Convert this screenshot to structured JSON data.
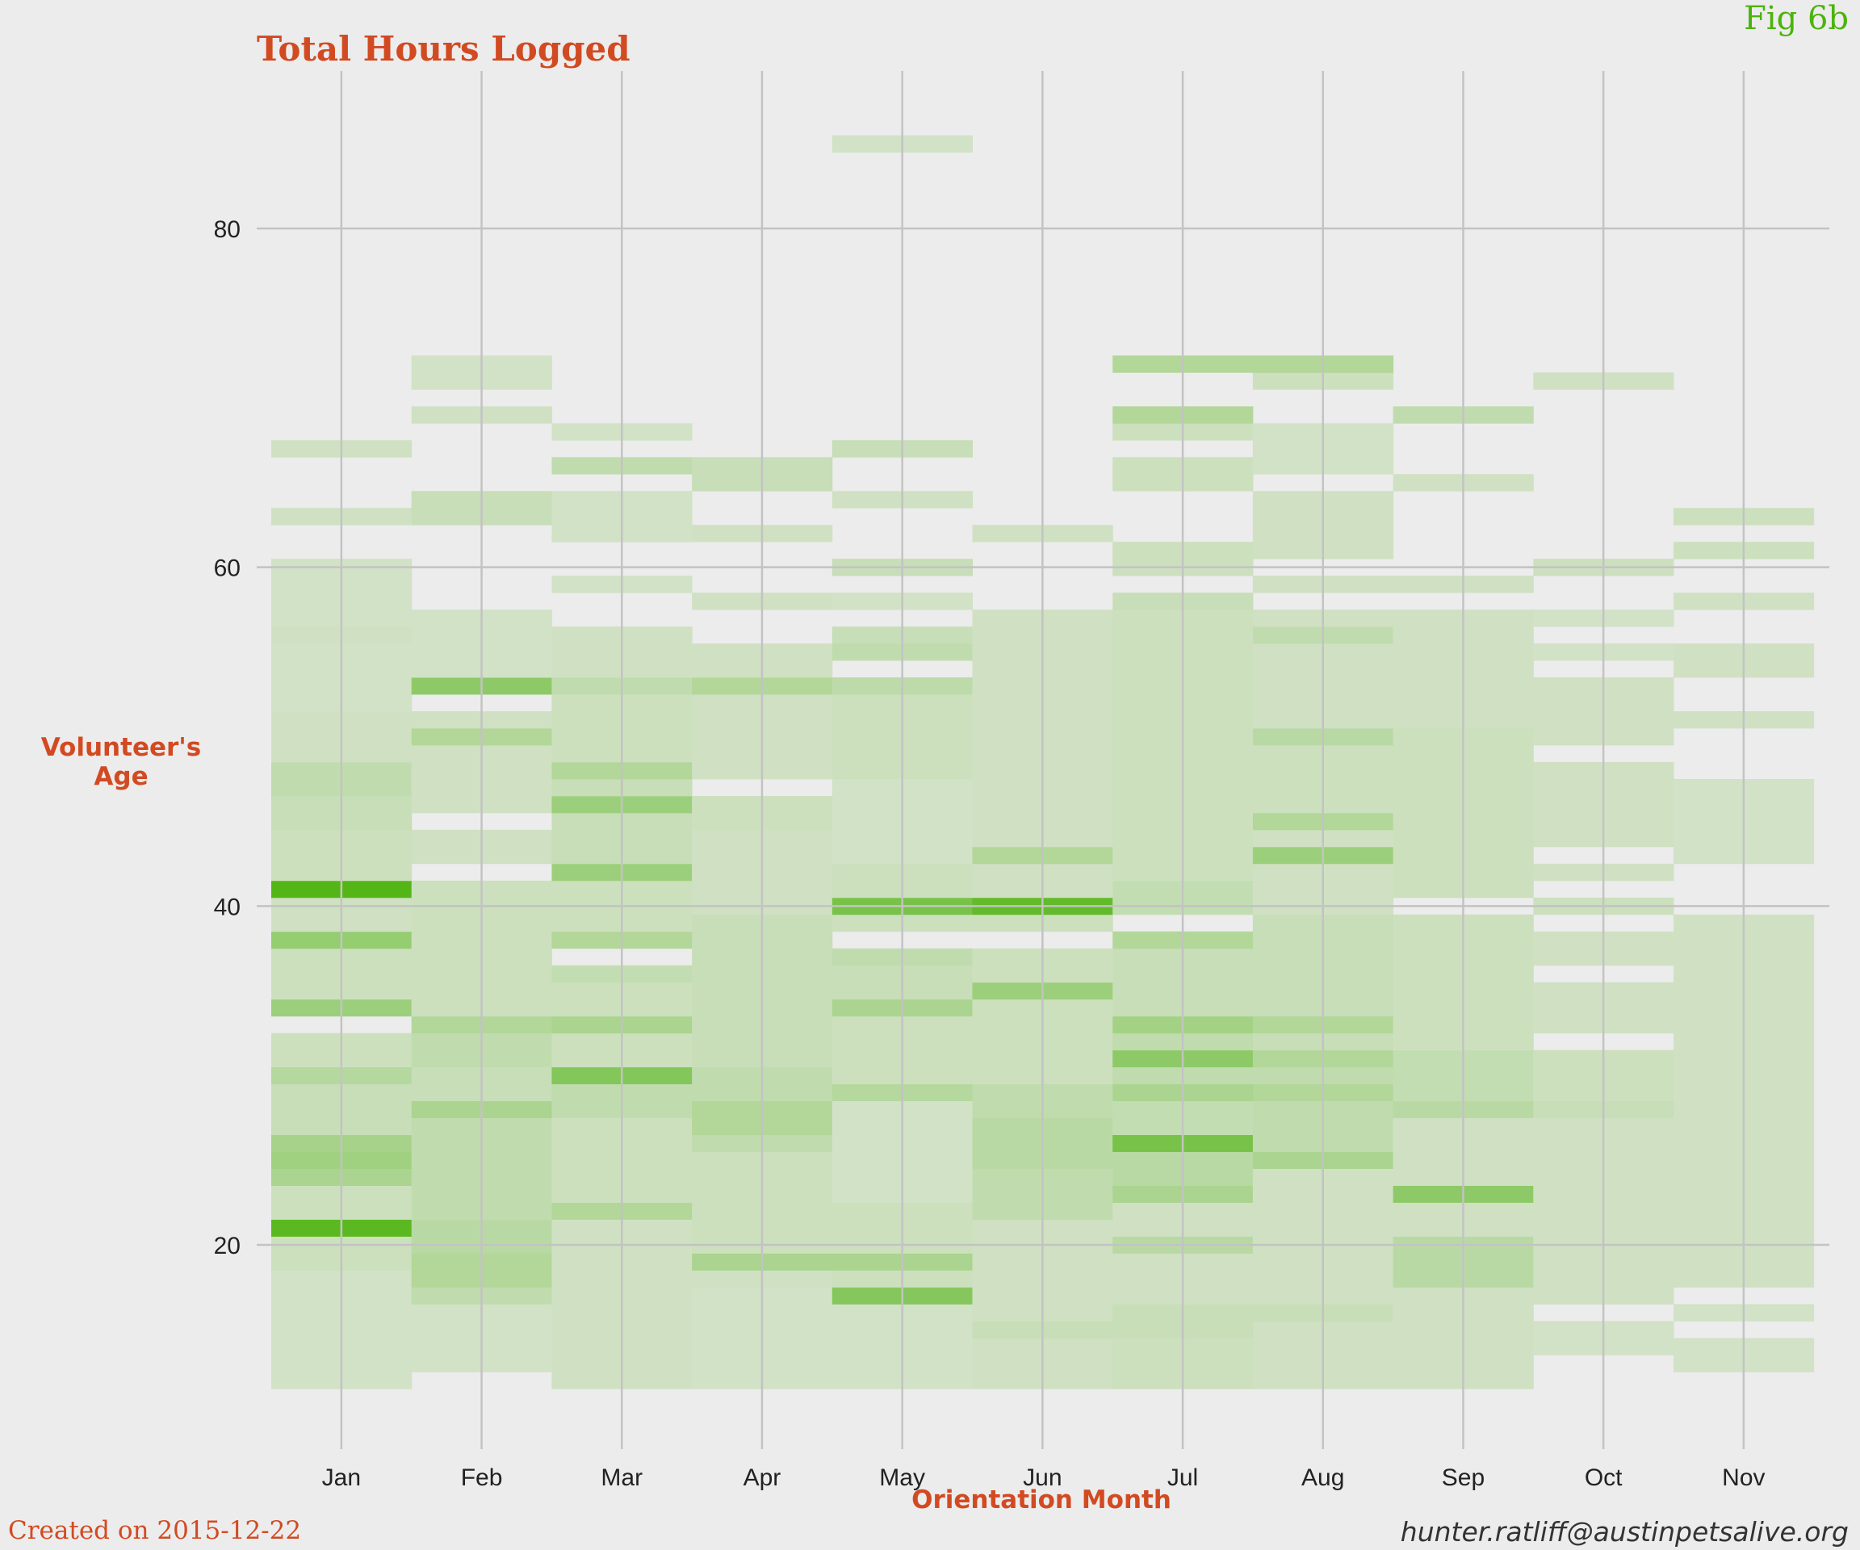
{
  "title": "Total Hours Logged",
  "figure_label": "Fig 6b",
  "footer": {
    "created": "Created on 2015-12-22",
    "credit": "hunter.ratliff@austinpetsalive.org"
  },
  "colors": {
    "background": "#ececec",
    "grid": "#c3c3c3",
    "title": "#d24a22",
    "figure_label": "#4cb30c",
    "fill_low": "#dde6d6",
    "fill_high": "#4cb30c"
  },
  "chart_data": {
    "type": "heatmap",
    "title": "Total Hours Logged",
    "xlabel": "Orientation Month",
    "ylabel": "Volunteer's Age",
    "categories": [
      "Jan",
      "Feb",
      "Mar",
      "Apr",
      "May",
      "Jun",
      "Jul",
      "Aug",
      "Sep",
      "Oct",
      "Nov"
    ],
    "yticks": [
      20,
      40,
      60,
      80
    ],
    "ylim": [
      7,
      89
    ],
    "grid": true,
    "legend": "none",
    "intensity_scale": "0-1 relative",
    "columns": [
      {
        "month": "Jan",
        "cells": [
          [
            12,
            18,
            0.08
          ],
          [
            19,
            20,
            0.12
          ],
          [
            21,
            0.9
          ],
          [
            22,
            23,
            0.12
          ],
          [
            24,
            0.35
          ],
          [
            25,
            0.42
          ],
          [
            26,
            0.38
          ],
          [
            27,
            29,
            0.15
          ],
          [
            30,
            0.28
          ],
          [
            31,
            32,
            0.12
          ],
          [
            34,
            0.45
          ],
          [
            35,
            37,
            0.12
          ],
          [
            38,
            0.5
          ],
          [
            39,
            40,
            0.1
          ],
          [
            41,
            0.95
          ],
          [
            42,
            44,
            0.12
          ],
          [
            45,
            46,
            0.15
          ],
          [
            47,
            48,
            0.2
          ],
          [
            49,
            51,
            0.1
          ],
          [
            52,
            55,
            0.08
          ],
          [
            56,
            0.1
          ],
          [
            57,
            60,
            0.08
          ],
          [
            63,
            0.1
          ],
          [
            67,
            0.1
          ]
        ]
      },
      {
        "month": "Feb",
        "cells": [
          [
            13,
            16,
            0.08
          ],
          [
            17,
            0.2
          ],
          [
            18,
            19,
            0.3
          ],
          [
            20,
            21,
            0.25
          ],
          [
            22,
            27,
            0.2
          ],
          [
            28,
            0.35
          ],
          [
            29,
            30,
            0.15
          ],
          [
            31,
            32,
            0.2
          ],
          [
            33,
            0.3
          ],
          [
            34,
            41,
            0.12
          ],
          [
            43,
            44,
            0.1
          ],
          [
            46,
            49,
            0.1
          ],
          [
            50,
            0.3
          ],
          [
            51,
            0.1
          ],
          [
            53,
            0.55
          ],
          [
            54,
            57,
            0.08
          ],
          [
            63,
            64,
            0.15
          ],
          [
            69,
            0.1
          ],
          [
            71,
            72,
            0.08
          ]
        ]
      },
      {
        "month": "Mar",
        "cells": [
          [
            12,
            21,
            0.1
          ],
          [
            22,
            0.3
          ],
          [
            23,
            27,
            0.12
          ],
          [
            28,
            29,
            0.2
          ],
          [
            30,
            0.62
          ],
          [
            31,
            32,
            0.12
          ],
          [
            33,
            0.35
          ],
          [
            34,
            35,
            0.12
          ],
          [
            36,
            0.18
          ],
          [
            38,
            0.3
          ],
          [
            39,
            41,
            0.12
          ],
          [
            42,
            0.45
          ],
          [
            43,
            45,
            0.15
          ],
          [
            46,
            0.45
          ],
          [
            47,
            0.15
          ],
          [
            48,
            0.3
          ],
          [
            49,
            52,
            0.12
          ],
          [
            53,
            0.2
          ],
          [
            54,
            56,
            0.1
          ],
          [
            59,
            0.08
          ],
          [
            62,
            64,
            0.08
          ],
          [
            66,
            0.2
          ],
          [
            68,
            0.08
          ]
        ]
      },
      {
        "month": "Apr",
        "cells": [
          [
            12,
            17,
            0.08
          ],
          [
            18,
            0.1
          ],
          [
            19,
            0.35
          ],
          [
            20,
            25,
            0.12
          ],
          [
            26,
            0.2
          ],
          [
            27,
            28,
            0.3
          ],
          [
            29,
            30,
            0.2
          ],
          [
            31,
            39,
            0.15
          ],
          [
            40,
            44,
            0.1
          ],
          [
            45,
            46,
            0.12
          ],
          [
            48,
            52,
            0.1
          ],
          [
            53,
            0.3
          ],
          [
            54,
            55,
            0.1
          ],
          [
            58,
            0.1
          ],
          [
            62,
            0.1
          ],
          [
            65,
            66,
            0.15
          ]
        ]
      },
      {
        "month": "May",
        "cells": [
          [
            12,
            16,
            0.08
          ],
          [
            17,
            0.6
          ],
          [
            18,
            0.12
          ],
          [
            19,
            0.35
          ],
          [
            20,
            22,
            0.12
          ],
          [
            23,
            28,
            0.08
          ],
          [
            29,
            0.28
          ],
          [
            30,
            33,
            0.12
          ],
          [
            34,
            0.35
          ],
          [
            35,
            36,
            0.15
          ],
          [
            37,
            0.2
          ],
          [
            39,
            0.12
          ],
          [
            40,
            0.7
          ],
          [
            41,
            42,
            0.12
          ],
          [
            43,
            47,
            0.08
          ],
          [
            48,
            52,
            0.12
          ],
          [
            53,
            0.22
          ],
          [
            55,
            0.2
          ],
          [
            56,
            0.15
          ],
          [
            58,
            0.08
          ],
          [
            60,
            0.15
          ],
          [
            64,
            0.1
          ],
          [
            67,
            0.15
          ],
          [
            85,
            0.08
          ]
        ]
      },
      {
        "month": "Jun",
        "cells": [
          [
            12,
            14,
            0.1
          ],
          [
            15,
            0.15
          ],
          [
            16,
            21,
            0.1
          ],
          [
            22,
            24,
            0.2
          ],
          [
            25,
            27,
            0.25
          ],
          [
            28,
            29,
            0.2
          ],
          [
            30,
            34,
            0.12
          ],
          [
            35,
            0.45
          ],
          [
            36,
            37,
            0.12
          ],
          [
            39,
            0.12
          ],
          [
            40,
            0.85
          ],
          [
            41,
            42,
            0.1
          ],
          [
            43,
            0.3
          ],
          [
            44,
            57,
            0.1
          ],
          [
            62,
            0.1
          ]
        ]
      },
      {
        "month": "Jul",
        "cells": [
          [
            12,
            14,
            0.12
          ],
          [
            15,
            16,
            0.15
          ],
          [
            17,
            19,
            0.1
          ],
          [
            20,
            0.25
          ],
          [
            21,
            22,
            0.1
          ],
          [
            23,
            0.35
          ],
          [
            24,
            25,
            0.25
          ],
          [
            26,
            0.7
          ],
          [
            27,
            28,
            0.18
          ],
          [
            29,
            0.35
          ],
          [
            30,
            0.2
          ],
          [
            31,
            0.55
          ],
          [
            32,
            0.2
          ],
          [
            33,
            0.4
          ],
          [
            34,
            37,
            0.15
          ],
          [
            38,
            0.3
          ],
          [
            40,
            41,
            0.18
          ],
          [
            42,
            57,
            0.12
          ],
          [
            58,
            0.15
          ],
          [
            60,
            61,
            0.12
          ],
          [
            65,
            66,
            0.12
          ],
          [
            68,
            0.12
          ],
          [
            69,
            0.3
          ],
          [
            72,
            0.3
          ]
        ]
      },
      {
        "month": "Aug",
        "cells": [
          [
            12,
            15,
            0.1
          ],
          [
            16,
            0.15
          ],
          [
            17,
            24,
            0.1
          ],
          [
            25,
            0.35
          ],
          [
            26,
            28,
            0.2
          ],
          [
            29,
            0.3
          ],
          [
            30,
            0.2
          ],
          [
            31,
            0.3
          ],
          [
            32,
            0.15
          ],
          [
            33,
            0.3
          ],
          [
            34,
            39,
            0.15
          ],
          [
            40,
            42,
            0.1
          ],
          [
            43,
            0.45
          ],
          [
            44,
            0.1
          ],
          [
            45,
            0.3
          ],
          [
            46,
            49,
            0.12
          ],
          [
            50,
            0.25
          ],
          [
            51,
            55,
            0.1
          ],
          [
            56,
            0.2
          ],
          [
            57,
            0.1
          ],
          [
            59,
            0.1
          ],
          [
            61,
            64,
            0.1
          ],
          [
            66,
            68,
            0.08
          ],
          [
            71,
            0.12
          ],
          [
            72,
            0.3
          ]
        ]
      },
      {
        "month": "Sep",
        "cells": [
          [
            12,
            17,
            0.1
          ],
          [
            18,
            20,
            0.25
          ],
          [
            21,
            22,
            0.1
          ],
          [
            23,
            0.55
          ],
          [
            24,
            27,
            0.1
          ],
          [
            28,
            0.25
          ],
          [
            29,
            31,
            0.18
          ],
          [
            32,
            39,
            0.12
          ],
          [
            41,
            50,
            0.12
          ],
          [
            51,
            57,
            0.1
          ],
          [
            59,
            0.1
          ],
          [
            65,
            0.1
          ],
          [
            69,
            0.2
          ]
        ]
      },
      {
        "month": "Oct",
        "cells": [
          [
            14,
            15,
            0.08
          ],
          [
            17,
            27,
            0.1
          ],
          [
            28,
            0.15
          ],
          [
            29,
            31,
            0.12
          ],
          [
            33,
            35,
            0.1
          ],
          [
            37,
            38,
            0.1
          ],
          [
            40,
            0.12
          ],
          [
            42,
            0.1
          ],
          [
            44,
            48,
            0.1
          ],
          [
            50,
            53,
            0.1
          ],
          [
            55,
            0.08
          ],
          [
            57,
            0.08
          ],
          [
            60,
            0.12
          ],
          [
            71,
            0.1
          ]
        ]
      },
      {
        "month": "Nov",
        "cells": [
          [
            13,
            14,
            0.08
          ],
          [
            16,
            0.08
          ],
          [
            18,
            39,
            0.1
          ],
          [
            43,
            47,
            0.08
          ],
          [
            51,
            0.1
          ],
          [
            54,
            55,
            0.1
          ],
          [
            58,
            0.1
          ],
          [
            61,
            0.12
          ],
          [
            63,
            0.12
          ]
        ]
      }
    ]
  }
}
